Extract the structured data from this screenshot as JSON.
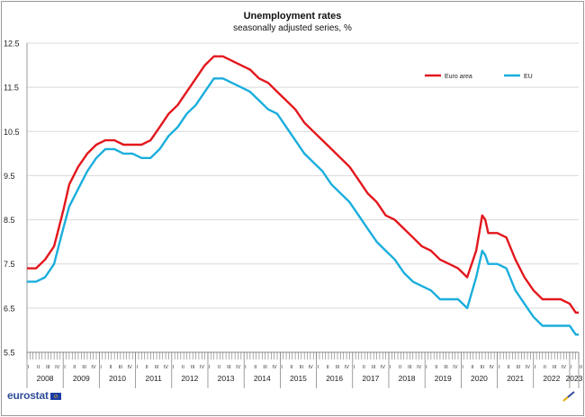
{
  "chart_data": {
    "type": "line",
    "title": "Unemployment rates",
    "subtitle": "seasonally adjusted series, %",
    "xlabel": "",
    "ylabel": "",
    "ylim": [
      5.5,
      12.5
    ],
    "yticks": [
      5.5,
      6.5,
      7.5,
      8.5,
      9.5,
      10.5,
      11.5,
      12.5
    ],
    "ytick_labels": [
      "5.5",
      "6.5",
      "7.5",
      "8.5",
      "9.5",
      "10.5",
      "11.5",
      "12.5"
    ],
    "grid": "horizontal",
    "legend_position": "top-right",
    "quarter_labels": [
      "I",
      "II",
      "III",
      "IV"
    ],
    "years": [
      "2008",
      "2009",
      "2010",
      "2011",
      "2012",
      "2013",
      "2014",
      "2015",
      "2016",
      "2017",
      "2018",
      "2019",
      "2020",
      "2021",
      "2022",
      "2023"
    ],
    "x_period": [
      "2008-01",
      "2023-04"
    ],
    "series": [
      {
        "name": "Euro area",
        "color": "#e3171d",
        "points": [
          [
            "2008-01",
            7.4
          ],
          [
            "2008-04",
            7.4
          ],
          [
            "2008-07",
            7.6
          ],
          [
            "2008-10",
            7.9
          ],
          [
            "2009-01",
            8.7
          ],
          [
            "2009-03",
            9.3
          ],
          [
            "2009-06",
            9.7
          ],
          [
            "2009-09",
            10.0
          ],
          [
            "2009-12",
            10.2
          ],
          [
            "2010-03",
            10.3
          ],
          [
            "2010-06",
            10.3
          ],
          [
            "2010-09",
            10.2
          ],
          [
            "2010-12",
            10.2
          ],
          [
            "2011-03",
            10.2
          ],
          [
            "2011-06",
            10.3
          ],
          [
            "2011-09",
            10.6
          ],
          [
            "2011-12",
            10.9
          ],
          [
            "2012-03",
            11.1
          ],
          [
            "2012-06",
            11.4
          ],
          [
            "2012-09",
            11.7
          ],
          [
            "2012-12",
            12.0
          ],
          [
            "2013-03",
            12.2
          ],
          [
            "2013-06",
            12.2
          ],
          [
            "2013-09",
            12.1
          ],
          [
            "2013-12",
            12.0
          ],
          [
            "2014-03",
            11.9
          ],
          [
            "2014-06",
            11.7
          ],
          [
            "2014-09",
            11.6
          ],
          [
            "2014-12",
            11.4
          ],
          [
            "2015-03",
            11.2
          ],
          [
            "2015-06",
            11.0
          ],
          [
            "2015-09",
            10.7
          ],
          [
            "2015-12",
            10.5
          ],
          [
            "2016-03",
            10.3
          ],
          [
            "2016-06",
            10.1
          ],
          [
            "2016-09",
            9.9
          ],
          [
            "2016-12",
            9.7
          ],
          [
            "2017-03",
            9.4
          ],
          [
            "2017-06",
            9.1
          ],
          [
            "2017-09",
            8.9
          ],
          [
            "2017-12",
            8.6
          ],
          [
            "2018-03",
            8.5
          ],
          [
            "2018-06",
            8.3
          ],
          [
            "2018-09",
            8.1
          ],
          [
            "2018-12",
            7.9
          ],
          [
            "2019-03",
            7.8
          ],
          [
            "2019-06",
            7.6
          ],
          [
            "2019-09",
            7.5
          ],
          [
            "2019-12",
            7.4
          ],
          [
            "2020-03",
            7.2
          ],
          [
            "2020-06",
            7.8
          ],
          [
            "2020-08",
            8.6
          ],
          [
            "2020-09",
            8.5
          ],
          [
            "2020-10",
            8.2
          ],
          [
            "2021-01",
            8.2
          ],
          [
            "2021-04",
            8.1
          ],
          [
            "2021-07",
            7.6
          ],
          [
            "2021-10",
            7.2
          ],
          [
            "2022-01",
            6.9
          ],
          [
            "2022-04",
            6.7
          ],
          [
            "2022-07",
            6.7
          ],
          [
            "2022-10",
            6.7
          ],
          [
            "2023-01",
            6.6
          ],
          [
            "2023-03",
            6.4
          ],
          [
            "2023-04",
            6.4
          ]
        ]
      },
      {
        "name": "EU",
        "color": "#1aaedc",
        "points": [
          [
            "2008-01",
            7.1
          ],
          [
            "2008-04",
            7.1
          ],
          [
            "2008-07",
            7.2
          ],
          [
            "2008-10",
            7.5
          ],
          [
            "2009-01",
            8.3
          ],
          [
            "2009-03",
            8.8
          ],
          [
            "2009-06",
            9.2
          ],
          [
            "2009-09",
            9.6
          ],
          [
            "2009-12",
            9.9
          ],
          [
            "2010-03",
            10.1
          ],
          [
            "2010-06",
            10.1
          ],
          [
            "2010-09",
            10.0
          ],
          [
            "2010-12",
            10.0
          ],
          [
            "2011-03",
            9.9
          ],
          [
            "2011-06",
            9.9
          ],
          [
            "2011-09",
            10.1
          ],
          [
            "2011-12",
            10.4
          ],
          [
            "2012-03",
            10.6
          ],
          [
            "2012-06",
            10.9
          ],
          [
            "2012-09",
            11.1
          ],
          [
            "2012-12",
            11.4
          ],
          [
            "2013-03",
            11.7
          ],
          [
            "2013-06",
            11.7
          ],
          [
            "2013-09",
            11.6
          ],
          [
            "2013-12",
            11.5
          ],
          [
            "2014-03",
            11.4
          ],
          [
            "2014-06",
            11.2
          ],
          [
            "2014-09",
            11.0
          ],
          [
            "2014-12",
            10.9
          ],
          [
            "2015-03",
            10.6
          ],
          [
            "2015-06",
            10.3
          ],
          [
            "2015-09",
            10.0
          ],
          [
            "2015-12",
            9.8
          ],
          [
            "2016-03",
            9.6
          ],
          [
            "2016-06",
            9.3
          ],
          [
            "2016-09",
            9.1
          ],
          [
            "2016-12",
            8.9
          ],
          [
            "2017-03",
            8.6
          ],
          [
            "2017-06",
            8.3
          ],
          [
            "2017-09",
            8.0
          ],
          [
            "2017-12",
            7.8
          ],
          [
            "2018-03",
            7.6
          ],
          [
            "2018-06",
            7.3
          ],
          [
            "2018-09",
            7.1
          ],
          [
            "2018-12",
            7.0
          ],
          [
            "2019-03",
            6.9
          ],
          [
            "2019-06",
            6.7
          ],
          [
            "2019-09",
            6.7
          ],
          [
            "2019-12",
            6.7
          ],
          [
            "2020-03",
            6.5
          ],
          [
            "2020-06",
            7.2
          ],
          [
            "2020-08",
            7.8
          ],
          [
            "2020-09",
            7.7
          ],
          [
            "2020-10",
            7.5
          ],
          [
            "2021-01",
            7.5
          ],
          [
            "2021-04",
            7.4
          ],
          [
            "2021-07",
            6.9
          ],
          [
            "2021-10",
            6.6
          ],
          [
            "2022-01",
            6.3
          ],
          [
            "2022-04",
            6.1
          ],
          [
            "2022-07",
            6.1
          ],
          [
            "2022-10",
            6.1
          ],
          [
            "2023-01",
            6.1
          ],
          [
            "2023-03",
            5.9
          ],
          [
            "2023-04",
            5.9
          ]
        ]
      }
    ]
  },
  "footer": {
    "logo_text": "eurostat",
    "logo_icon": "eu-flag-icon",
    "corner_icon": "pen-stroke-icon"
  }
}
